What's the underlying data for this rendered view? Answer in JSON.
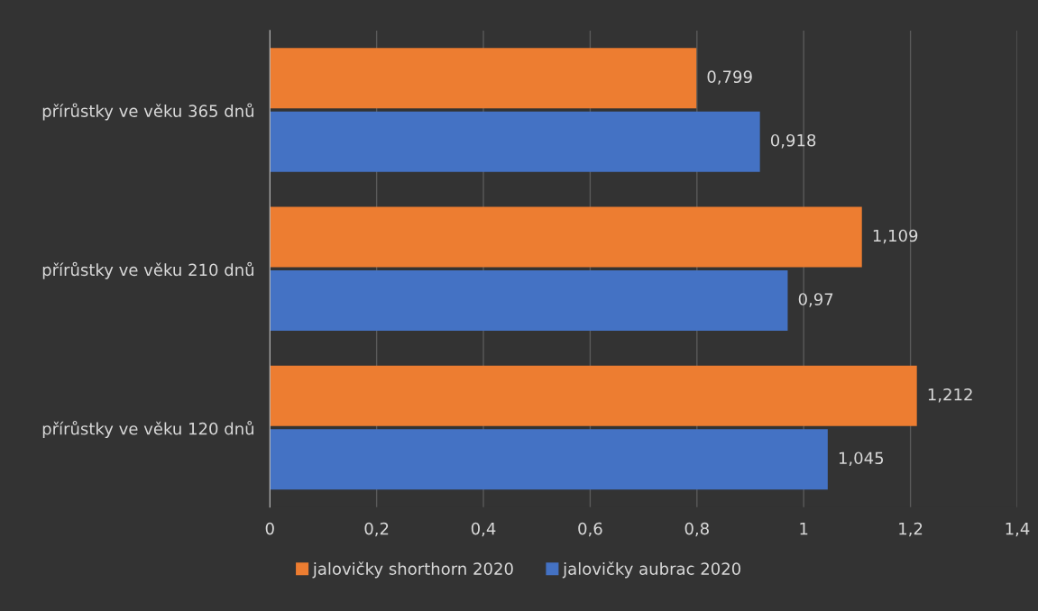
{
  "chart_data": {
    "type": "bar",
    "orientation": "horizontal",
    "categories": [
      "přírůstky ve věku 365 dnů",
      "přírůstky ve věku 210 dnů",
      "přírůstky ve věku 120 dnů"
    ],
    "series": [
      {
        "name": "jalovičky shorthorn 2020",
        "color": "#ed7d31",
        "values": [
          0.799,
          1.109,
          1.212
        ],
        "value_labels": [
          "0,799",
          "1,109",
          "1,212"
        ]
      },
      {
        "name": "jalovičky aubrac 2020",
        "color": "#4472c4",
        "values": [
          0.918,
          0.97,
          1.045
        ],
        "value_labels": [
          "0,918",
          "0,97",
          "1,045"
        ]
      }
    ],
    "xlim": [
      0,
      1.4
    ],
    "xticks": [
      0,
      {
        "value": 0.2,
        "label": "0,2"
      },
      {
        "value": 0.4,
        "label": "0,4"
      },
      {
        "value": 0.6,
        "label": "0,6"
      },
      {
        "value": 0.8,
        "label": "0,8"
      },
      1,
      {
        "value": 1.2,
        "label": "1,2"
      },
      {
        "value": 1.4,
        "label": "1,4"
      }
    ],
    "grid": "x",
    "legend": "bottom"
  }
}
